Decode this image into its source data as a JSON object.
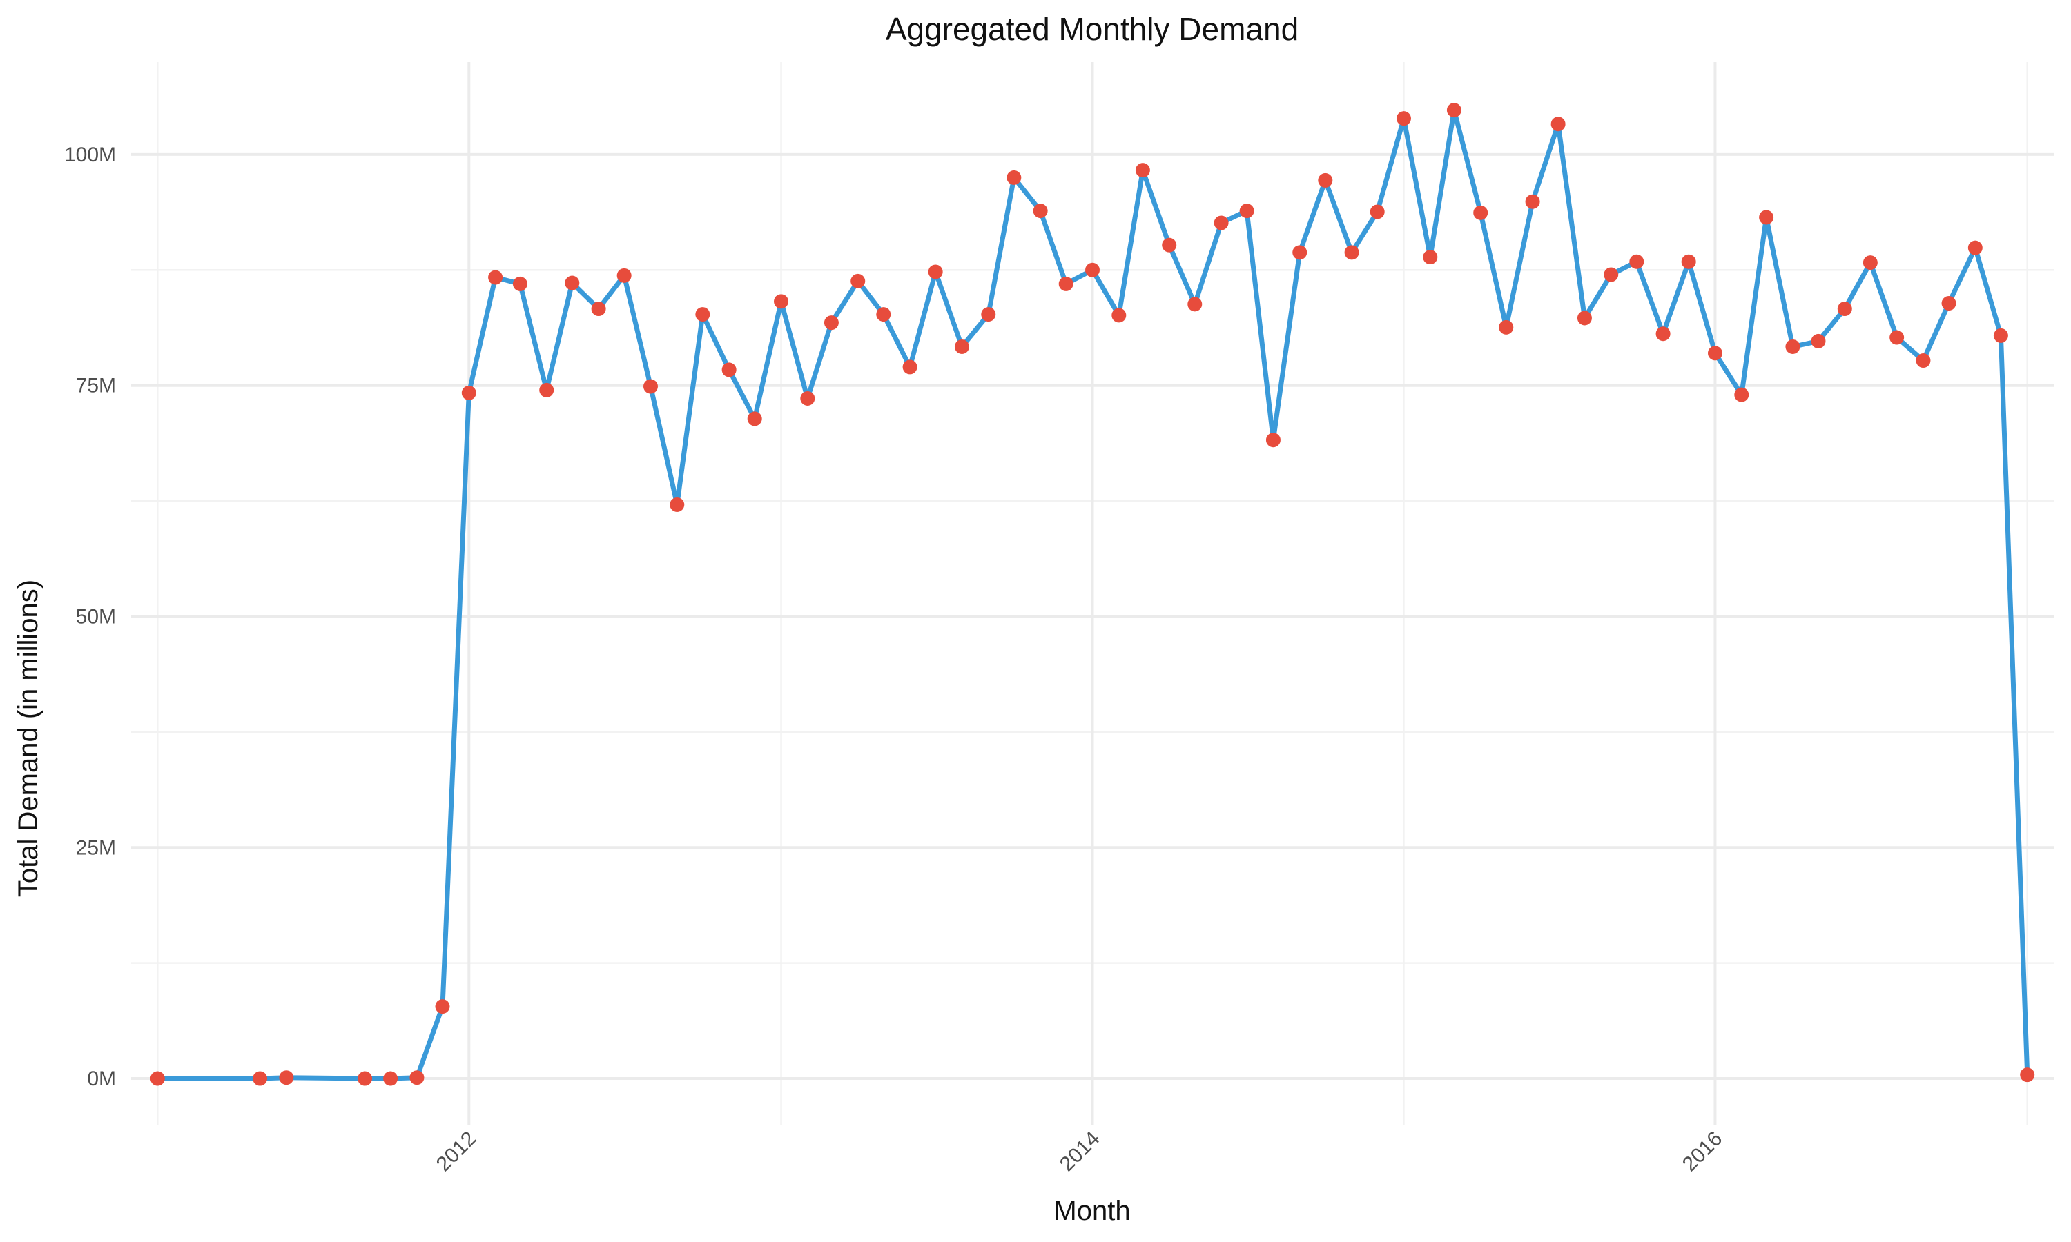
{
  "chart_data": {
    "type": "line",
    "title": "Aggregated Monthly Demand",
    "xlabel": "Month",
    "ylabel": "Total Demand (in millions)",
    "x_axis": {
      "kind": "date",
      "range": [
        "2010-12-01",
        "2017-02-01"
      ],
      "major_ticks": [
        "2012-01-01",
        "2014-01-01",
        "2016-01-01"
      ],
      "tick_labels": [
        "2012",
        "2014",
        "2016"
      ],
      "minor_ticks": [
        "2011-01-01",
        "2013-01-01",
        "2015-01-01",
        "2017-01-01"
      ],
      "tick_label_rotation": "45°"
    },
    "y_axis": {
      "range": [
        -5,
        110
      ],
      "major_ticks": [
        0,
        25,
        50,
        75,
        100
      ],
      "tick_labels": [
        "0M",
        "25M",
        "50M",
        "75M",
        "100M"
      ],
      "minor_ticks": [
        12.5,
        37.5,
        62.5,
        87.5
      ]
    },
    "grid": true,
    "legend": "none",
    "colors": {
      "line": "#3a9ad9",
      "points": "#e74c3c",
      "grid": "#ebebeb"
    },
    "series": [
      {
        "x": [
          "2011-01-01",
          "2011-05-01",
          "2011-06-01",
          "2011-09-01",
          "2011-10-01",
          "2011-11-01",
          "2011-12-01",
          "2012-01-01",
          "2012-02-01",
          "2012-03-01",
          "2012-04-01",
          "2012-05-01",
          "2012-06-01",
          "2012-07-01",
          "2012-08-01",
          "2012-09-01",
          "2012-10-01",
          "2012-11-01",
          "2012-12-01",
          "2013-01-01",
          "2013-02-01",
          "2013-03-01",
          "2013-04-01",
          "2013-05-01",
          "2013-06-01",
          "2013-07-01",
          "2013-08-01",
          "2013-09-01",
          "2013-10-01",
          "2013-11-01",
          "2013-12-01",
          "2014-01-01",
          "2014-02-01",
          "2014-03-01",
          "2014-04-01",
          "2014-05-01",
          "2014-06-01",
          "2014-07-01",
          "2014-08-01",
          "2014-09-01",
          "2014-10-01",
          "2014-11-01",
          "2014-12-01",
          "2015-01-01",
          "2015-02-01",
          "2015-03-01",
          "2015-04-01",
          "2015-05-01",
          "2015-06-01",
          "2015-07-01",
          "2015-08-01",
          "2015-09-01",
          "2015-10-01",
          "2015-11-01",
          "2015-12-01",
          "2016-01-01",
          "2016-02-01",
          "2016-03-01",
          "2016-04-01",
          "2016-05-01",
          "2016-06-01",
          "2016-07-01",
          "2016-08-01",
          "2016-09-01",
          "2016-10-01",
          "2016-11-01",
          "2016-12-01",
          "2017-01-01"
        ],
        "values": [
          0.0,
          0.0,
          0.1,
          0.0,
          0.0,
          0.1,
          7.8,
          74.2,
          86.7,
          86.0,
          74.5,
          86.1,
          83.3,
          86.9,
          74.9,
          62.1,
          82.7,
          76.7,
          71.4,
          84.1,
          73.6,
          81.8,
          86.3,
          82.7,
          77.0,
          87.3,
          79.2,
          82.7,
          97.5,
          93.9,
          86.0,
          87.5,
          82.6,
          98.3,
          90.2,
          83.8,
          92.6,
          93.9,
          69.1,
          89.4,
          97.2,
          89.4,
          93.8,
          103.9,
          88.9,
          104.8,
          93.7,
          81.3,
          94.9,
          103.3,
          82.3,
          87.0,
          88.4,
          80.6,
          88.4,
          78.5,
          74.0,
          93.2,
          79.2,
          79.8,
          83.3,
          88.3,
          80.2,
          77.7,
          83.9,
          89.9,
          80.4,
          0.4
        ]
      }
    ]
  }
}
